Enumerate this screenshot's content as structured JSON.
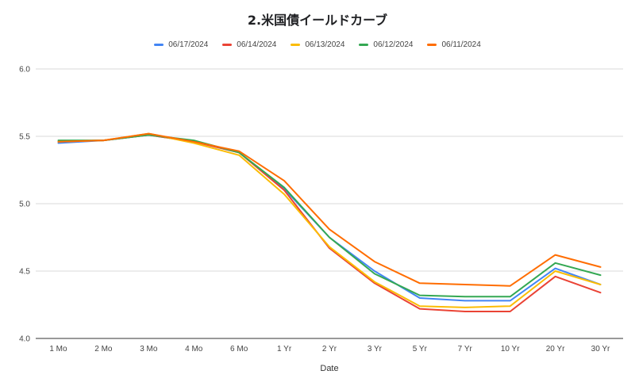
{
  "chart_data": {
    "type": "line",
    "title": "2.米国債イールドカーブ",
    "xlabel": "Date",
    "ylabel": "",
    "ylim": [
      4.0,
      6.0
    ],
    "yticks": [
      "4.0",
      "4.5",
      "5.0",
      "5.5",
      "6.0"
    ],
    "categories": [
      "1 Mo",
      "2 Mo",
      "3 Mo",
      "4 Mo",
      "6 Mo",
      "1 Yr",
      "2 Yr",
      "3 Yr",
      "5 Yr",
      "7 Yr",
      "10 Yr",
      "20 Yr",
      "30 Yr"
    ],
    "grid": true,
    "legend_position": "top",
    "series": [
      {
        "name": "06/17/2024",
        "color": "#4285f4",
        "values": [
          5.45,
          5.47,
          5.51,
          5.46,
          5.38,
          5.11,
          4.75,
          4.5,
          4.3,
          4.28,
          4.28,
          4.52,
          4.4
        ]
      },
      {
        "name": "06/14/2024",
        "color": "#ea4335",
        "values": [
          5.46,
          5.47,
          5.51,
          5.46,
          5.38,
          5.1,
          4.67,
          4.41,
          4.22,
          4.2,
          4.2,
          4.46,
          4.34
        ]
      },
      {
        "name": "06/13/2024",
        "color": "#fbbc04",
        "values": [
          5.46,
          5.47,
          5.52,
          5.45,
          5.36,
          5.07,
          4.68,
          4.42,
          4.24,
          4.23,
          4.24,
          4.5,
          4.4
        ]
      },
      {
        "name": "06/12/2024",
        "color": "#34a853",
        "values": [
          5.47,
          5.47,
          5.51,
          5.47,
          5.38,
          5.12,
          4.75,
          4.48,
          4.32,
          4.31,
          4.31,
          4.56,
          4.47
        ]
      },
      {
        "name": "06/11/2024",
        "color": "#ff6d01",
        "values": [
          5.46,
          5.47,
          5.52,
          5.46,
          5.39,
          5.17,
          4.81,
          4.57,
          4.41,
          4.4,
          4.39,
          4.62,
          4.53
        ]
      }
    ]
  }
}
